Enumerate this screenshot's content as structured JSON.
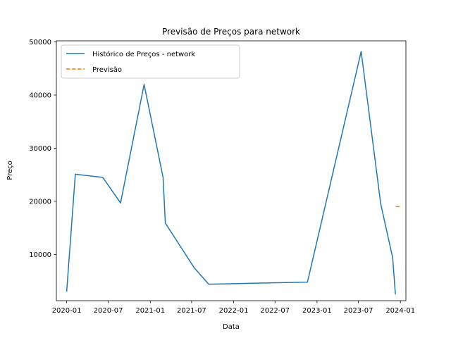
{
  "chart_data": {
    "type": "line",
    "title": "Previsão de Preços para network",
    "xlabel": "Data",
    "ylabel": "Preço",
    "xlim": [
      "2019-11-17",
      "2024-01-25"
    ],
    "ylim": [
      1300,
      50200
    ],
    "x_ticks": [
      "2020-01",
      "2020-07",
      "2021-01",
      "2021-07",
      "2022-01",
      "2022-07",
      "2023-01",
      "2023-07",
      "2024-01"
    ],
    "y_ticks": [
      10000,
      20000,
      30000,
      40000,
      50000
    ],
    "grid": false,
    "legend_position": "top-left",
    "series": [
      {
        "name": "Histórico de Preços - network",
        "color": "#1f77b4",
        "style": "solid",
        "x": [
          "2020-01-01",
          "2020-02-08",
          "2020-06-07",
          "2020-08-24",
          "2020-12-05",
          "2021-02-26",
          "2021-03-08",
          "2021-07-12",
          "2021-09-14",
          "2022-11-20",
          "2023-07-13",
          "2023-10-07",
          "2023-11-28",
          "2023-12-10"
        ],
        "values": [
          3000,
          25100,
          24500,
          19700,
          42000,
          24500,
          15900,
          7500,
          4400,
          4800,
          48200,
          19500,
          9400,
          2500
        ]
      },
      {
        "name": "Previsão",
        "color": "#ff7f0e",
        "style": "dashed",
        "x": [
          "2023-12-12",
          "2023-12-31"
        ],
        "values": [
          19000,
          19000
        ]
      }
    ]
  }
}
